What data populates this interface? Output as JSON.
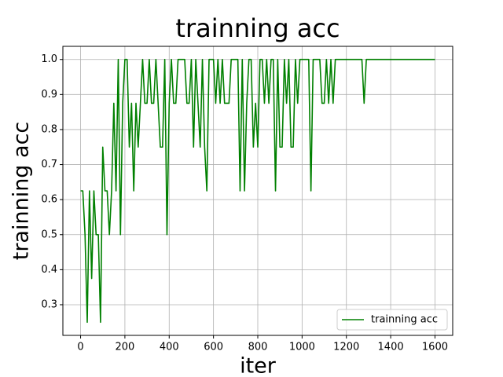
{
  "chart_data": {
    "type": "line",
    "title": "trainning acc",
    "x_label": "iter",
    "y_label": "trainning acc",
    "x": [
      0,
      10,
      20,
      30,
      40,
      50,
      60,
      70,
      80,
      90,
      100,
      110,
      120,
      130,
      140,
      150,
      160,
      170,
      180,
      190,
      200,
      210,
      220,
      230,
      240,
      250,
      260,
      270,
      280,
      290,
      300,
      310,
      320,
      330,
      340,
      350,
      360,
      370,
      380,
      390,
      400,
      410,
      420,
      430,
      440,
      450,
      460,
      470,
      480,
      490,
      500,
      510,
      520,
      530,
      540,
      550,
      560,
      570,
      580,
      590,
      600,
      610,
      620,
      630,
      640,
      650,
      660,
      670,
      680,
      690,
      700,
      710,
      720,
      730,
      740,
      750,
      760,
      770,
      780,
      790,
      800,
      810,
      820,
      830,
      840,
      850,
      860,
      870,
      880,
      890,
      900,
      910,
      920,
      930,
      940,
      950,
      960,
      970,
      980,
      990,
      1000,
      1010,
      1020,
      1030,
      1040,
      1050,
      1060,
      1070,
      1080,
      1090,
      1100,
      1110,
      1120,
      1130,
      1140,
      1150,
      1160,
      1270,
      1280,
      1290,
      1600
    ],
    "series": [
      {
        "name": "trainning acc",
        "color": "#008000",
        "values": [
          0.625,
          0.625,
          0.5,
          0.25,
          0.625,
          0.375,
          0.625,
          0.5,
          0.5,
          0.25,
          0.75,
          0.625,
          0.625,
          0.5,
          0.625,
          0.875,
          0.625,
          1.0,
          0.5,
          0.875,
          1.0,
          1.0,
          0.75,
          0.875,
          0.625,
          0.875,
          0.75,
          0.875,
          1.0,
          0.875,
          0.875,
          1.0,
          0.875,
          0.875,
          1.0,
          0.875,
          0.75,
          0.75,
          1.0,
          0.5,
          0.875,
          1.0,
          0.875,
          0.875,
          1.0,
          1.0,
          1.0,
          1.0,
          0.875,
          0.875,
          1.0,
          0.75,
          1.0,
          0.875,
          0.75,
          1.0,
          0.75,
          0.625,
          1.0,
          1.0,
          1.0,
          0.875,
          1.0,
          0.875,
          1.0,
          0.875,
          0.875,
          0.875,
          1.0,
          1.0,
          1.0,
          1.0,
          0.625,
          1.0,
          0.625,
          0.875,
          1.0,
          1.0,
          0.75,
          0.875,
          0.75,
          1.0,
          1.0,
          0.875,
          1.0,
          0.875,
          1.0,
          1.0,
          0.625,
          1.0,
          0.75,
          0.75,
          1.0,
          0.875,
          1.0,
          0.75,
          0.75,
          1.0,
          0.875,
          1.0,
          1.0,
          1.0,
          1.0,
          1.0,
          0.625,
          1.0,
          1.0,
          1.0,
          1.0,
          0.875,
          0.875,
          1.0,
          0.875,
          1.0,
          0.875,
          1.0,
          1.0,
          1.0,
          0.875,
          1.0,
          1.0
        ]
      }
    ],
    "xlim": [
      -80,
      1680
    ],
    "ylim": [
      0.2125,
      1.0375
    ],
    "xticks": [
      0,
      200,
      400,
      600,
      800,
      1000,
      1200,
      1400,
      1600
    ],
    "yticks": [
      0.3,
      0.4,
      0.5,
      0.6,
      0.7,
      0.8,
      0.9,
      {
        "value": 1.0,
        "label": "1.0"
      }
    ],
    "grid": true,
    "legend": "lower right"
  }
}
